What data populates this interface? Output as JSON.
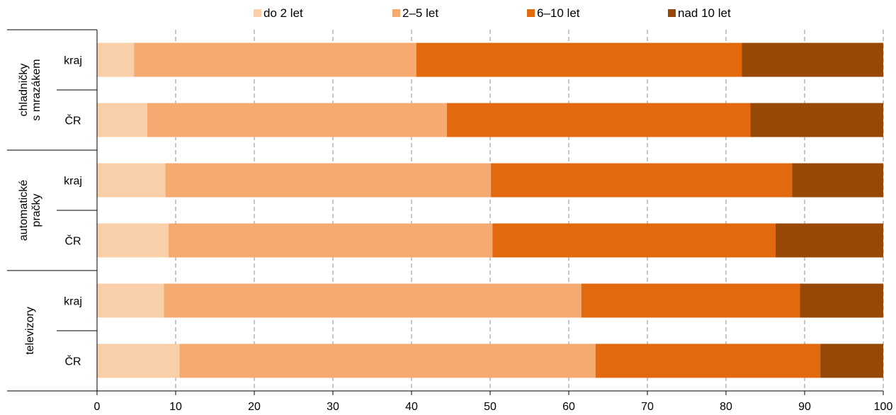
{
  "chart_data": {
    "type": "bar",
    "orientation": "horizontal",
    "stacked": "percent",
    "xlim": [
      0,
      100
    ],
    "xticks": [
      "0",
      "10",
      "20",
      "30",
      "40",
      "50",
      "60",
      "70",
      "80",
      "90",
      "100"
    ],
    "grid": "vertical dashed",
    "legend_position": "top",
    "series": [
      {
        "name": "do 2 let",
        "color": "#f9cfa9"
      },
      {
        "name": "2–5 let",
        "color": "#f5aa70"
      },
      {
        "name": "6–10 let",
        "color": "#e2690e"
      },
      {
        "name": "nad 10 let",
        "color": "#974806"
      }
    ],
    "groups": [
      {
        "label": [
          "chladničky",
          "s mrazákem"
        ],
        "rows": [
          {
            "label": "kraj",
            "values": [
              4.7,
              35.9,
              41.4,
              18.0
            ]
          },
          {
            "label": "ČR",
            "values": [
              6.4,
              38.1,
              38.6,
              16.9
            ]
          }
        ]
      },
      {
        "label": [
          "automatické",
          "pračky"
        ],
        "rows": [
          {
            "label": "kraj",
            "values": [
              8.7,
              41.4,
              38.3,
              11.6
            ]
          },
          {
            "label": "ČR",
            "values": [
              9.1,
              41.2,
              36.0,
              13.7
            ]
          }
        ]
      },
      {
        "label": [
          "televizory"
        ],
        "rows": [
          {
            "label": "kraj",
            "values": [
              8.5,
              53.1,
              27.8,
              10.6
            ]
          },
          {
            "label": "ČR",
            "values": [
              10.5,
              52.9,
              28.6,
              8.0
            ]
          }
        ]
      }
    ]
  }
}
